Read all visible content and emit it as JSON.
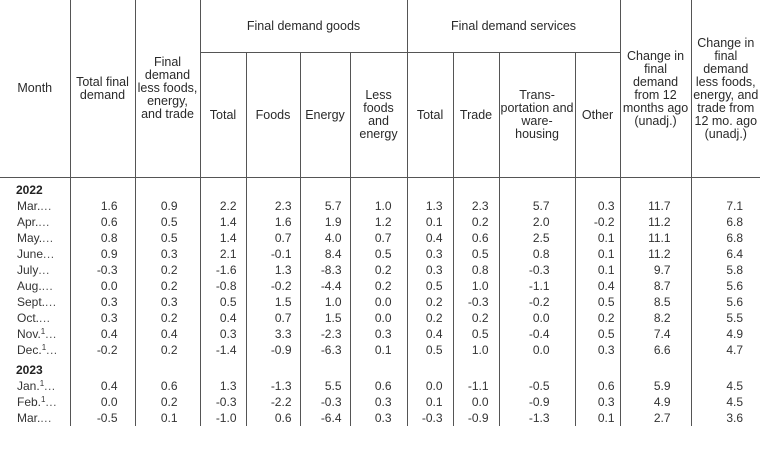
{
  "headers": {
    "month": "Month",
    "total_final_demand": "Total final demand",
    "final_demand_less": "Final demand less foods, energy, and trade",
    "goods_group": "Final demand goods",
    "services_group": "Final demand services",
    "change_12m": "Change in final demand from 12 months ago (unadj.)",
    "change_less_12m": "Change in final demand less foods, energy, and trade from 12 mo. ago (unadj.)",
    "goods_total": "Total",
    "goods_foods": "Foods",
    "goods_energy": "Energy",
    "goods_less": "Less foods and energy",
    "services_total": "Total",
    "services_trade": "Trade",
    "services_transport": "Trans- portation and ware- housing",
    "services_other": "Other"
  },
  "years": [
    {
      "year": "2022",
      "rows": [
        {
          "month": "Mar.",
          "fn": "",
          "vals": [
            "1.6",
            "0.9",
            "2.2",
            "2.3",
            "5.7",
            "1.0",
            "1.3",
            "2.3",
            "5.7",
            "0.3",
            "11.7",
            "7.1"
          ]
        },
        {
          "month": "Apr.",
          "fn": "",
          "vals": [
            "0.6",
            "0.5",
            "1.4",
            "1.6",
            "1.9",
            "1.2",
            "0.1",
            "0.2",
            "2.0",
            "-0.2",
            "11.2",
            "6.8"
          ]
        },
        {
          "month": "May.",
          "fn": "",
          "vals": [
            "0.8",
            "0.5",
            "1.4",
            "0.7",
            "4.0",
            "0.7",
            "0.4",
            "0.6",
            "2.5",
            "0.1",
            "11.1",
            "6.8"
          ]
        },
        {
          "month": "June",
          "fn": "",
          "vals": [
            "0.9",
            "0.3",
            "2.1",
            "-0.1",
            "8.4",
            "0.5",
            "0.3",
            "0.5",
            "0.8",
            "0.1",
            "11.2",
            "6.4"
          ]
        },
        {
          "month": "July",
          "fn": "",
          "vals": [
            "-0.3",
            "0.2",
            "-1.6",
            "1.3",
            "-8.3",
            "0.2",
            "0.3",
            "0.8",
            "-0.3",
            "0.1",
            "9.7",
            "5.8"
          ]
        },
        {
          "month": "Aug.",
          "fn": "",
          "vals": [
            "0.0",
            "0.2",
            "-0.8",
            "-0.2",
            "-4.4",
            "0.2",
            "0.5",
            "1.0",
            "-1.1",
            "0.4",
            "8.7",
            "5.6"
          ]
        },
        {
          "month": "Sept.",
          "fn": "",
          "vals": [
            "0.3",
            "0.3",
            "0.5",
            "1.5",
            "1.0",
            "0.0",
            "0.2",
            "-0.3",
            "-0.2",
            "0.5",
            "8.5",
            "5.6"
          ]
        },
        {
          "month": "Oct.",
          "fn": "",
          "vals": [
            "0.3",
            "0.2",
            "0.4",
            "0.7",
            "1.5",
            "0.0",
            "0.2",
            "0.2",
            "0.0",
            "0.2",
            "8.2",
            "5.5"
          ]
        },
        {
          "month": "Nov.",
          "fn": "1",
          "vals": [
            "0.4",
            "0.4",
            "0.3",
            "3.3",
            "-2.3",
            "0.3",
            "0.4",
            "0.5",
            "-0.4",
            "0.5",
            "7.4",
            "4.9"
          ]
        },
        {
          "month": "Dec.",
          "fn": "1",
          "vals": [
            "-0.2",
            "0.2",
            "-1.4",
            "-0.9",
            "-6.3",
            "0.1",
            "0.5",
            "1.0",
            "0.0",
            "0.3",
            "6.6",
            "4.7"
          ]
        }
      ]
    },
    {
      "year": "2023",
      "rows": [
        {
          "month": "Jan.",
          "fn": "1",
          "vals": [
            "0.4",
            "0.6",
            "1.3",
            "-1.3",
            "5.5",
            "0.6",
            "0.0",
            "-1.1",
            "-0.5",
            "0.6",
            "5.9",
            "4.5"
          ]
        },
        {
          "month": "Feb.",
          "fn": "1",
          "vals": [
            "0.0",
            "0.2",
            "-0.3",
            "-2.2",
            "-0.3",
            "0.3",
            "0.1",
            "0.0",
            "-0.9",
            "0.3",
            "4.9",
            "4.5"
          ]
        },
        {
          "month": "Mar.",
          "fn": "",
          "vals": [
            "-0.5",
            "0.1",
            "-1.0",
            "0.6",
            "-6.4",
            "0.3",
            "-0.3",
            "-0.9",
            "-1.3",
            "0.1",
            "2.7",
            "3.6"
          ]
        }
      ]
    }
  ]
}
